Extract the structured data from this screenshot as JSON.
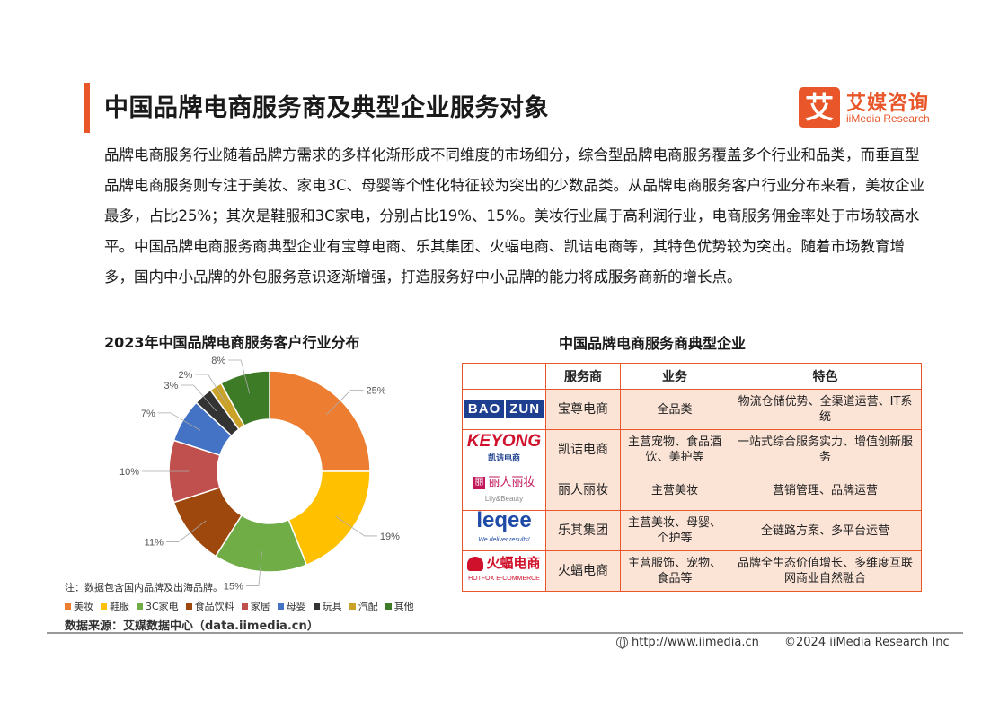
{
  "header": {
    "title": "中国品牌电商服务商及典型企业服务对象",
    "logo_mark": "艾",
    "logo_cn": "艾媒咨询",
    "logo_en": "iiMedia Research"
  },
  "intro": "品牌电商服务行业随着品牌方需求的多样化渐形成不同维度的市场细分，综合型品牌电商服务覆盖多个行业和品类，而垂直型品牌电商服务则专注于美妆、家电3C、母婴等个性化特征较为突出的少数品类。从品牌电商服务客户行业分布来看，美妆企业最多，占比25%；其次是鞋服和3C家电，分别占比19%、15%。美妆行业属于高利润行业，电商服务佣金率处于市场较高水平。中国品牌电商服务商典型企业有宝尊电商、乐其集团、火蝠电商、凯诘电商等，其特色优势较为突出。随着市场教育增多，国内中小品牌的外包服务意识逐渐增强，打造服务好中小品牌的能力将成服务商新的增长点。",
  "chart_data": {
    "type": "pie",
    "donut": true,
    "title": "2023年中国品牌电商服务客户行业分布",
    "categories": [
      "美妆",
      "鞋服",
      "3C家电",
      "食品饮料",
      "家居",
      "母婴",
      "玩具",
      "汽配",
      "其他"
    ],
    "values": [
      25,
      19,
      15,
      11,
      10,
      7,
      3,
      2,
      8
    ],
    "labels": [
      "25%",
      "19%",
      "15%",
      "11%",
      "10%",
      "7%",
      "3%",
      "2%",
      "8%"
    ],
    "colors": [
      "#ed7d31",
      "#ffc000",
      "#70ad47",
      "#9e480e",
      "#c0504d",
      "#4472c4",
      "#333333",
      "#c9a227",
      "#3e7b27"
    ],
    "legend_position": "bottom"
  },
  "note": "注：数据包含国内品牌及出海品牌。",
  "source": "数据来源：艾媒数据中心（data.iimedia.cn）",
  "table": {
    "title": "中国品牌电商服务商典型企业",
    "headers": [
      "",
      "服务商",
      "业务",
      "特色"
    ],
    "rows": [
      {
        "logo_a": "BAO",
        "logo_b": "ZUN",
        "name": "宝尊电商",
        "business": "全品类",
        "feature": "物流仓储优势、全渠道运营、IT系统"
      },
      {
        "logo_a": "KEYONG",
        "logo_b": "凯诘电商",
        "name": "凯诘电商",
        "business": "主营宠物、食品酒饮、美护等",
        "feature": "一站式综合服务实力、增值创新服务"
      },
      {
        "logo_a": "丽人丽妆",
        "logo_b": "Lily&Beauty",
        "name": "丽人丽妆",
        "business": "主营美妆",
        "feature": "营销管理、品牌运营"
      },
      {
        "logo_a": "leqee",
        "logo_b": "We deliver results!",
        "name": "乐其集团",
        "business": "主营美妆、母婴、个护等",
        "feature": "全链路方案、多平台运营"
      },
      {
        "logo_a": "火蝠电商",
        "logo_b": "HOTFOX E-COMMERCE",
        "name": "火蝠电商",
        "business": "主营服饰、宠物、食品等",
        "feature": "品牌全生态价值增长、多维度互联网商业自然融合"
      }
    ]
  },
  "footer": {
    "url": "http://www.iimedia.cn",
    "copyright": "©2024  iiMedia Research  Inc",
    "icon": "globe-icon"
  }
}
